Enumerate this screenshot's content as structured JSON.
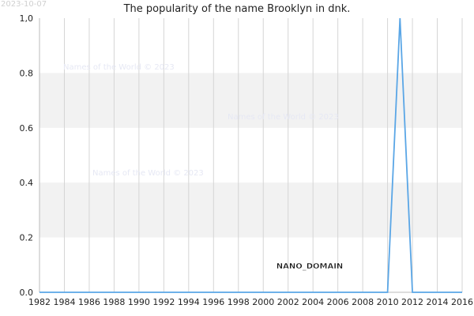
{
  "date_stamp": "2023-10-07",
  "watermarks": [
    "Names of the World © 2023",
    "Names of the World © 2023",
    "Names of the World © 2023"
  ],
  "domain_label": "NANO_DOMAIN",
  "chart_data": {
    "type": "line",
    "title": "The popularity of the name Brooklyn in dnk.",
    "xlabel": "",
    "ylabel": "",
    "xlim": [
      1982,
      2016
    ],
    "ylim": [
      0,
      1
    ],
    "x_ticks": [
      "1982",
      "1984",
      "1986",
      "1988",
      "1990",
      "1992",
      "1994",
      "1996",
      "1998",
      "2000",
      "2002",
      "2004",
      "2006",
      "2008",
      "2010",
      "2012",
      "2014",
      "2016"
    ],
    "y_ticks": [
      "0.0",
      "0.2",
      "0.4",
      "0.6",
      "0.8",
      "1,0"
    ],
    "grid": true,
    "legend": "none",
    "series": [
      {
        "color": "#5aa6e6",
        "x": [
          1982,
          1983,
          1984,
          1985,
          1986,
          1987,
          1988,
          1989,
          1990,
          1991,
          1992,
          1993,
          1994,
          1995,
          1996,
          1997,
          1998,
          1999,
          2000,
          2001,
          2002,
          2003,
          2004,
          2005,
          2006,
          2007,
          2008,
          2009,
          2010,
          2011,
          2012,
          2013,
          2014,
          2015,
          2016
        ],
        "y": [
          0,
          0,
          0,
          0,
          0,
          0,
          0,
          0,
          0,
          0,
          0,
          0,
          0,
          0,
          0,
          0,
          0,
          0,
          0,
          0,
          0,
          0,
          0,
          0,
          0,
          0,
          0,
          0,
          0,
          1,
          0,
          0,
          0,
          0,
          0
        ]
      }
    ]
  }
}
